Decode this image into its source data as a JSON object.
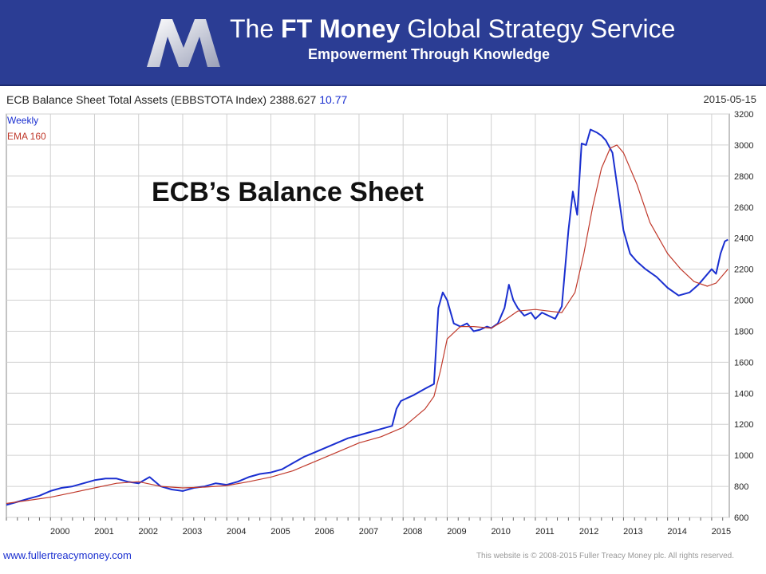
{
  "header": {
    "brand_prefix": "The ",
    "brand_bold": "FT Money",
    "brand_suffix": " Global Strategy Service",
    "tagline": "Empowerment Through Knowledge",
    "logo_icon": "m-logo-icon"
  },
  "chart_header": {
    "title": "ECB Balance Sheet Total Assets (EBBSTOTA Index) 2388.627 ",
    "change": "10.77",
    "date": "2015-05-15",
    "legend_weekly": "Weekly",
    "legend_ema": "EMA 160",
    "annotation": "ECB’s Balance Sheet"
  },
  "footer": {
    "url": "www.fullertreacymoney.com",
    "copyright": "This website is © 2008-2015 Fuller Treacy Money plc. All rights reserved."
  },
  "colors": {
    "banner": "#2b3d94",
    "price_line": "#1a2fd0",
    "ema_line": "#c0392b",
    "grid": "#d0d0d0"
  },
  "chart_data": {
    "type": "line",
    "title": "ECB Balance Sheet Total Assets (EBBSTOTA Index)",
    "xlim": [
      1999.0,
      2015.4
    ],
    "ylim": [
      600,
      3200
    ],
    "yticks": [
      600,
      800,
      1000,
      1200,
      1400,
      1600,
      1800,
      2000,
      2200,
      2400,
      2600,
      2800,
      3000,
      3200
    ],
    "xticks": [
      2000,
      2001,
      2002,
      2003,
      2004,
      2005,
      2006,
      2007,
      2008,
      2009,
      2010,
      2011,
      2012,
      2013,
      2014,
      2015
    ],
    "grid": true,
    "axis_side": "right",
    "series": [
      {
        "name": "Weekly",
        "x": [
          1999.0,
          1999.25,
          1999.5,
          1999.75,
          2000.0,
          2000.25,
          2000.5,
          2000.75,
          2001.0,
          2001.25,
          2001.5,
          2001.75,
          2002.0,
          2002.25,
          2002.5,
          2002.75,
          2003.0,
          2003.25,
          2003.5,
          2003.75,
          2004.0,
          2004.25,
          2004.5,
          2004.75,
          2005.0,
          2005.25,
          2005.5,
          2005.75,
          2006.0,
          2006.25,
          2006.5,
          2006.75,
          2007.0,
          2007.25,
          2007.5,
          2007.75,
          2007.85,
          2007.95,
          2008.25,
          2008.5,
          2008.7,
          2008.8,
          2008.9,
          2009.0,
          2009.15,
          2009.3,
          2009.45,
          2009.6,
          2009.75,
          2009.9,
          2010.0,
          2010.15,
          2010.3,
          2010.4,
          2010.5,
          2010.6,
          2010.75,
          2010.9,
          2011.0,
          2011.15,
          2011.3,
          2011.45,
          2011.6,
          2011.75,
          2011.85,
          2011.95,
          2012.05,
          2012.15,
          2012.25,
          2012.4,
          2012.5,
          2012.6,
          2012.75,
          2012.9,
          2013.0,
          2013.15,
          2013.3,
          2013.5,
          2013.75,
          2014.0,
          2014.25,
          2014.5,
          2014.7,
          2014.85,
          2015.0,
          2015.1,
          2015.2,
          2015.3,
          2015.37
        ],
        "values": [
          680,
          700,
          720,
          740,
          770,
          790,
          800,
          820,
          840,
          850,
          850,
          830,
          820,
          860,
          800,
          780,
          770,
          790,
          800,
          820,
          810,
          830,
          860,
          880,
          890,
          910,
          950,
          990,
          1020,
          1050,
          1080,
          1110,
          1130,
          1150,
          1170,
          1190,
          1300,
          1350,
          1390,
          1430,
          1460,
          1950,
          2050,
          2000,
          1850,
          1830,
          1850,
          1800,
          1810,
          1830,
          1820,
          1850,
          1950,
          2100,
          2000,
          1950,
          1900,
          1920,
          1880,
          1920,
          1900,
          1880,
          1960,
          2450,
          2700,
          2550,
          3010,
          3000,
          3100,
          3080,
          3060,
          3030,
          2950,
          2650,
          2450,
          2300,
          2250,
          2200,
          2150,
          2080,
          2030,
          2050,
          2100,
          2150,
          2200,
          2170,
          2300,
          2380,
          2390
        ]
      },
      {
        "name": "EMA 160",
        "x": [
          1999.0,
          1999.5,
          2000.0,
          2000.5,
          2001.0,
          2001.5,
          2002.0,
          2002.5,
          2003.0,
          2003.5,
          2004.0,
          2004.5,
          2005.0,
          2005.5,
          2006.0,
          2006.5,
          2007.0,
          2007.5,
          2008.0,
          2008.5,
          2008.7,
          2008.85,
          2009.0,
          2009.3,
          2009.6,
          2010.0,
          2010.3,
          2010.6,
          2011.0,
          2011.3,
          2011.6,
          2011.9,
          2012.1,
          2012.3,
          2012.5,
          2012.7,
          2012.85,
          2013.0,
          2013.3,
          2013.6,
          2014.0,
          2014.3,
          2014.6,
          2014.9,
          2015.1,
          2015.37
        ],
        "values": [
          690,
          710,
          730,
          760,
          790,
          820,
          830,
          800,
          790,
          795,
          805,
          830,
          860,
          900,
          960,
          1020,
          1080,
          1120,
          1180,
          1300,
          1380,
          1550,
          1750,
          1830,
          1830,
          1820,
          1870,
          1930,
          1940,
          1930,
          1920,
          2050,
          2300,
          2600,
          2850,
          2980,
          3000,
          2950,
          2750,
          2500,
          2300,
          2200,
          2120,
          2090,
          2110,
          2200
        ]
      }
    ]
  }
}
